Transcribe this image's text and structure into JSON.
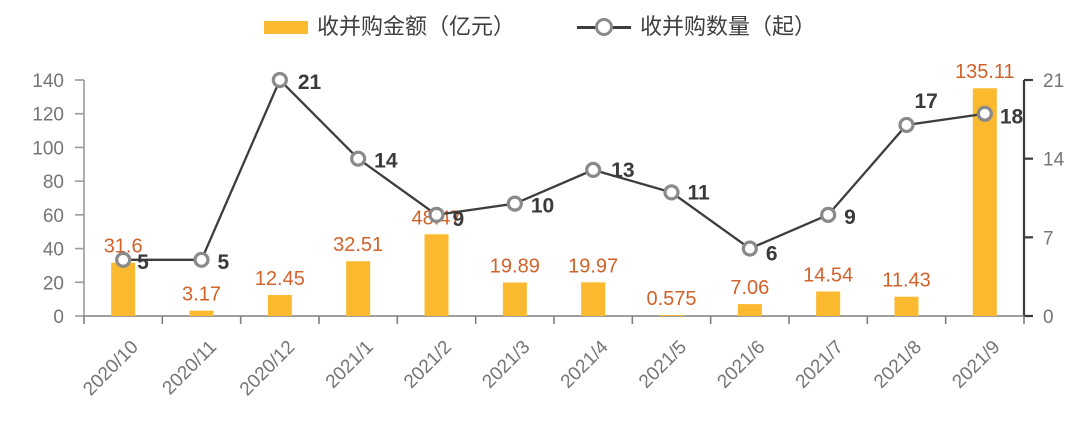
{
  "chart_data": {
    "type": "combo",
    "title": "",
    "categories": [
      "2020/10",
      "2020/11",
      "2020/12",
      "2021/1",
      "2021/2",
      "2021/3",
      "2021/4",
      "2021/5",
      "2021/6",
      "2021/7",
      "2021/8",
      "2021/9"
    ],
    "series": [
      {
        "name": "收并购金额（亿元）",
        "chart_type": "bar",
        "axis": "left",
        "values": [
          31.6,
          3.17,
          12.45,
          32.51,
          48.47,
          19.89,
          19.97,
          0.575,
          7.06,
          14.54,
          11.43,
          135.11
        ],
        "data_labels": [
          "31.6",
          "3.17",
          "12.45",
          "32.51",
          "48.47",
          "19.89",
          "19.97",
          "0.575",
          "7.06",
          "14.54",
          "11.43",
          "135.11"
        ],
        "color": "#FBB92F",
        "label_color": "#D2622A"
      },
      {
        "name": "收并购数量（起）",
        "chart_type": "line",
        "axis": "right",
        "values": [
          5,
          5,
          21,
          14,
          9,
          10,
          13,
          11,
          6,
          9,
          17,
          18
        ],
        "data_labels": [
          "5",
          "5",
          "21",
          "14",
          "9",
          "10",
          "13",
          "11",
          "6",
          "9",
          "17",
          "18"
        ],
        "line_color": "#3D3D3D",
        "marker_fill": "#FFFFFF",
        "marker_stroke": "#8A8A8A",
        "label_color": "#3A3A3A",
        "label_offsets": [
          [
            14,
            9
          ],
          [
            16,
            9
          ],
          [
            18,
            9
          ],
          [
            16,
            9
          ],
          [
            16,
            11
          ],
          [
            16,
            9
          ],
          [
            18,
            7
          ],
          [
            16,
            7
          ],
          [
            16,
            12
          ],
          [
            16,
            9
          ],
          [
            8,
            -17
          ],
          [
            15,
            10
          ]
        ]
      }
    ],
    "left_axis": {
      "min": 0,
      "max": 140,
      "step": 20,
      "tick_labels": [
        "0",
        "20",
        "40",
        "60",
        "80",
        "100",
        "120",
        "140"
      ]
    },
    "right_axis": {
      "min": 0,
      "max": 21,
      "step": 7,
      "tick_labels": [
        "0",
        "7",
        "14",
        "21"
      ]
    },
    "legend_position": "top",
    "grid": false,
    "axis_colors": {
      "left_line": "#9a9a9a",
      "bottom_line": "#7f7f7f",
      "right_line": "#3a3a3a",
      "tick_text": "#757575"
    }
  }
}
